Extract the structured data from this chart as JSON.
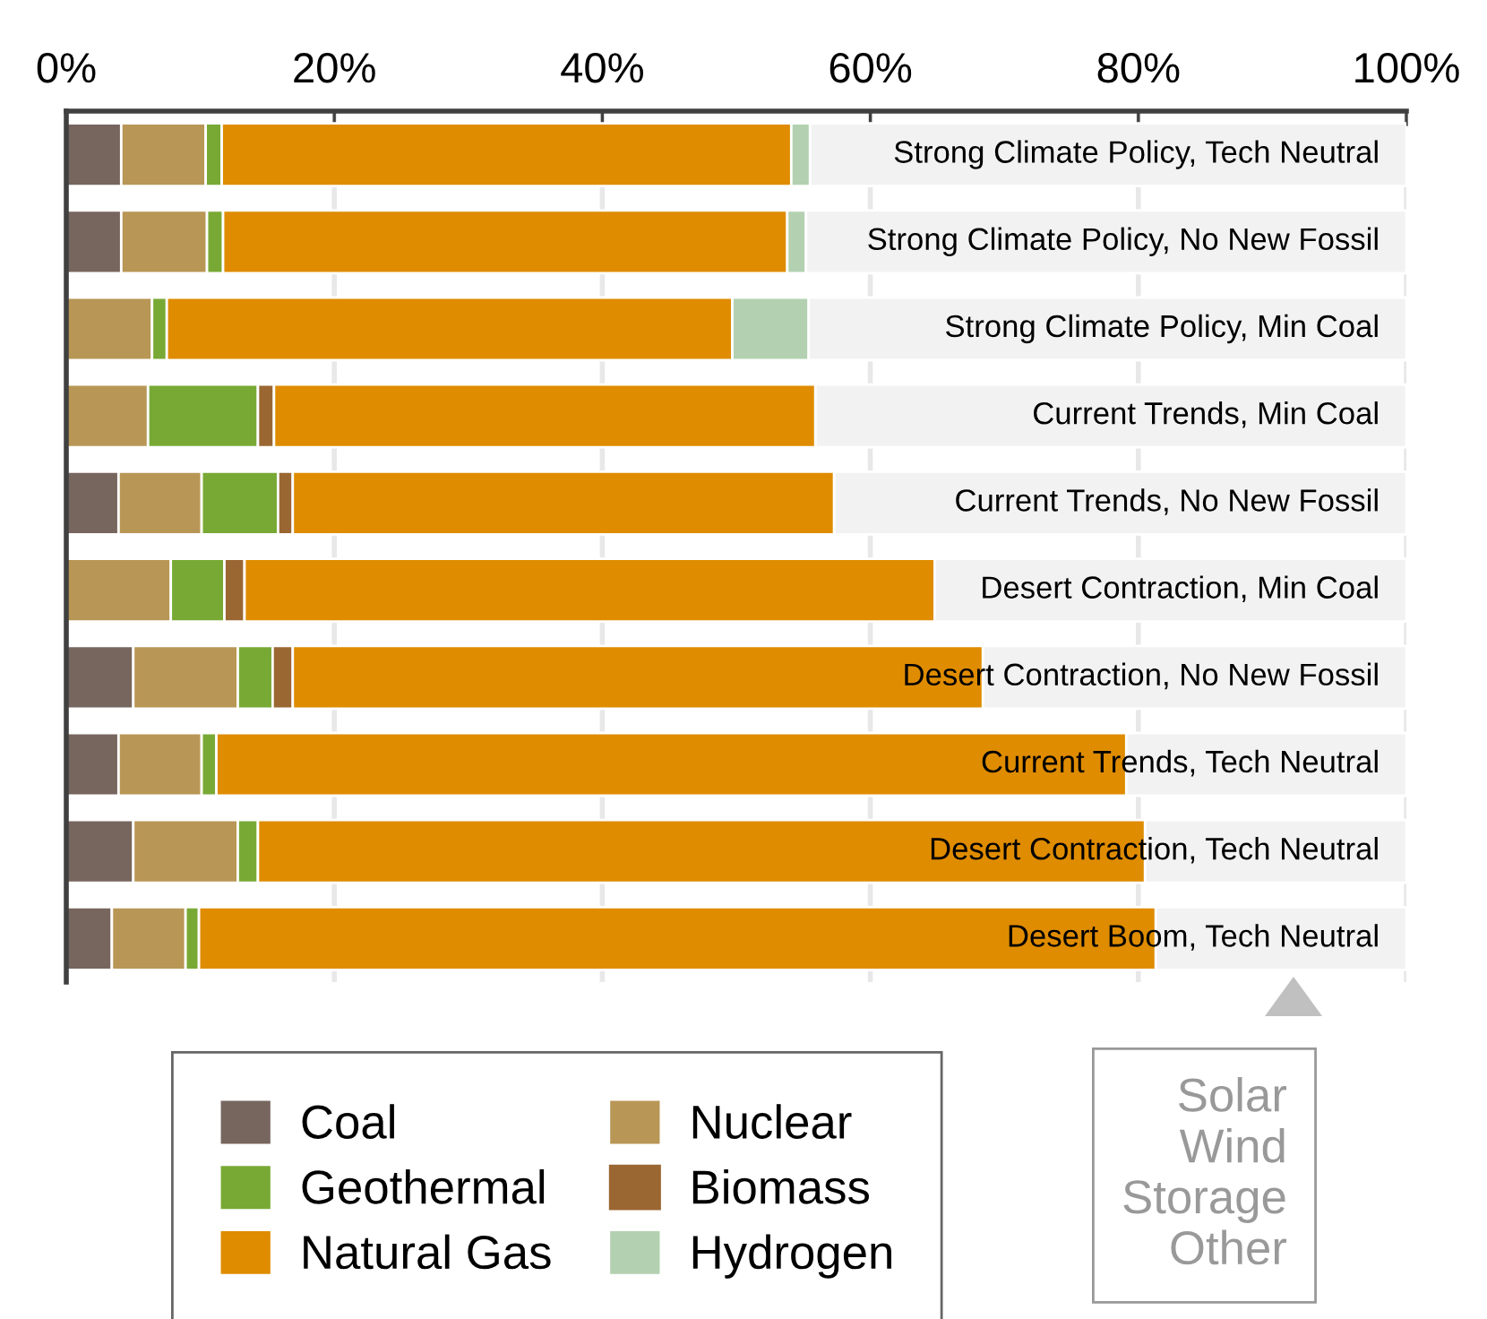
{
  "chart_data": {
    "type": "bar",
    "orientation": "horizontal",
    "stacked": true,
    "categories": [
      "Strong Climate Policy, Tech Neutral",
      "Strong Climate Policy, No New Fossil",
      "Strong Climate Policy, Min Coal",
      "Current Trends, Min Coal",
      "Current Trends, No New Fossil",
      "Desert Contraction, Min Coal",
      "Desert Contraction, No New Fossil",
      "Current Trends, Tech Neutral",
      "Desert Contraction, Tech Neutral",
      "Desert Boom, Tech Neutral"
    ],
    "series": [
      {
        "name": "Coal",
        "color": "#77665e",
        "values": [
          4.1,
          4.1,
          0,
          0,
          3.9,
          0,
          5.0,
          3.9,
          5.0,
          3.4
        ]
      },
      {
        "name": "Nuclear",
        "color": "#b89655",
        "values": [
          6.3,
          6.4,
          6.4,
          6.1,
          6.2,
          7.8,
          7.8,
          6.2,
          7.8,
          5.5
        ]
      },
      {
        "name": "Geothermal",
        "color": "#78a935",
        "values": [
          1.2,
          1.2,
          1.1,
          8.2,
          5.7,
          4.0,
          2.6,
          1.1,
          1.5,
          1.0
        ]
      },
      {
        "name": "Biomass",
        "color": "#9a6632",
        "values": [
          0,
          0,
          0,
          1.2,
          1.1,
          1.5,
          1.5,
          0,
          0,
          0
        ]
      },
      {
        "name": "Natural Gas",
        "color": "#df8c00",
        "values": [
          42.5,
          42.1,
          42.2,
          40.4,
          40.4,
          51.5,
          51.5,
          67.9,
          66.2,
          71.4
        ]
      },
      {
        "name": "Hydrogen",
        "color": "#b3d1b1",
        "values": [
          1.4,
          1.4,
          5.7,
          0,
          0,
          0,
          0,
          0,
          0,
          0
        ]
      },
      {
        "name": "Solar\nWind\nStorage\nOther",
        "color": "#f2f2f2",
        "values": [
          44.5,
          44.8,
          44.6,
          44.1,
          42.7,
          35.2,
          31.6,
          20.9,
          19.5,
          18.7
        ]
      }
    ],
    "xlim": [
      0,
      100
    ],
    "xticks": [
      {
        "value": 0,
        "label": "0%"
      },
      {
        "value": 20,
        "label": "20%"
      },
      {
        "value": 40,
        "label": "40%"
      },
      {
        "value": 60,
        "label": "60%"
      },
      {
        "value": 80,
        "label": "80%"
      },
      {
        "value": 100,
        "label": "100%"
      }
    ],
    "grid": "x",
    "legend": "bottom",
    "tick_labels": "x"
  }
}
